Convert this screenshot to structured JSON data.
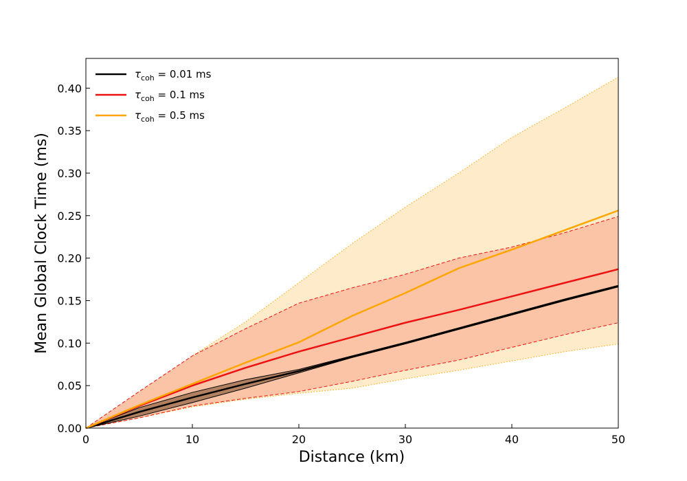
{
  "chart_data": {
    "type": "line",
    "xlabel": "Distance (km)",
    "ylabel": "Mean Global Clock Time (ms)",
    "xlim": [
      0,
      50
    ],
    "ylim": [
      0,
      0.435
    ],
    "xticks": [
      0,
      10,
      20,
      30,
      40,
      50
    ],
    "xtick_labels": [
      "0",
      "10",
      "20",
      "30",
      "40",
      "50"
    ],
    "yticks": [
      0,
      0.05,
      0.1,
      0.15,
      0.2,
      0.25,
      0.3,
      0.35,
      0.4
    ],
    "ytick_labels": [
      "0.00",
      "0.05",
      "0.10",
      "0.15",
      "0.20",
      "0.25",
      "0.30",
      "0.35",
      "0.40"
    ],
    "grid": false,
    "legend_position": "top-left",
    "series": [
      {
        "name_symbol": "τ",
        "name_subscript": "coh",
        "name_value": " = 0.01 ms",
        "color": "#000000",
        "band_color": "#b08060",
        "band_style": "solid",
        "x": [
          0,
          5,
          10,
          15,
          20,
          25,
          30,
          35,
          40,
          45,
          50
        ],
        "mean": [
          0,
          0.019,
          0.036,
          0.052,
          0.067,
          0.084,
          0.1,
          0.117,
          0.134,
          0.151,
          0.167
        ],
        "upper": [
          0,
          0.024,
          0.042,
          0.057,
          0.069,
          0.085,
          0.101,
          0.118,
          0.135,
          0.152,
          0.168
        ],
        "lower": [
          0,
          0.014,
          0.03,
          0.047,
          0.065,
          0.083,
          0.099,
          0.116,
          0.133,
          0.15,
          0.166
        ]
      },
      {
        "name_symbol": "τ",
        "name_subscript": "coh",
        "name_value": " = 0.1 ms",
        "color": "#ee1111",
        "band_color": "#fcc4a6",
        "band_style": "dashed",
        "x": [
          0,
          5,
          10,
          15,
          20,
          25,
          30,
          35,
          40,
          45,
          50
        ],
        "mean": [
          0,
          0.026,
          0.05,
          0.071,
          0.09,
          0.107,
          0.124,
          0.139,
          0.155,
          0.171,
          0.187
        ],
        "upper": [
          0,
          0.043,
          0.085,
          0.117,
          0.147,
          0.165,
          0.181,
          0.2,
          0.213,
          0.23,
          0.249
        ],
        "lower": [
          0,
          0.012,
          0.026,
          0.035,
          0.043,
          0.055,
          0.068,
          0.08,
          0.095,
          0.11,
          0.124
        ]
      },
      {
        "name_symbol": "τ",
        "name_subscript": "coh",
        "name_value": " = 0.5 ms",
        "color": "#ffa500",
        "band_color": "#fdebc9",
        "band_style": "dotted",
        "x": [
          0,
          5,
          10,
          15,
          20,
          25,
          30,
          35,
          40,
          45,
          50
        ],
        "mean": [
          0,
          0.027,
          0.052,
          0.077,
          0.101,
          0.132,
          0.159,
          0.188,
          0.21,
          0.233,
          0.256
        ],
        "upper": [
          0,
          0.04,
          0.085,
          0.125,
          0.171,
          0.217,
          0.26,
          0.3,
          0.342,
          0.377,
          0.413
        ],
        "lower": [
          0,
          0.012,
          0.025,
          0.034,
          0.041,
          0.047,
          0.058,
          0.068,
          0.079,
          0.09,
          0.099
        ]
      }
    ]
  }
}
